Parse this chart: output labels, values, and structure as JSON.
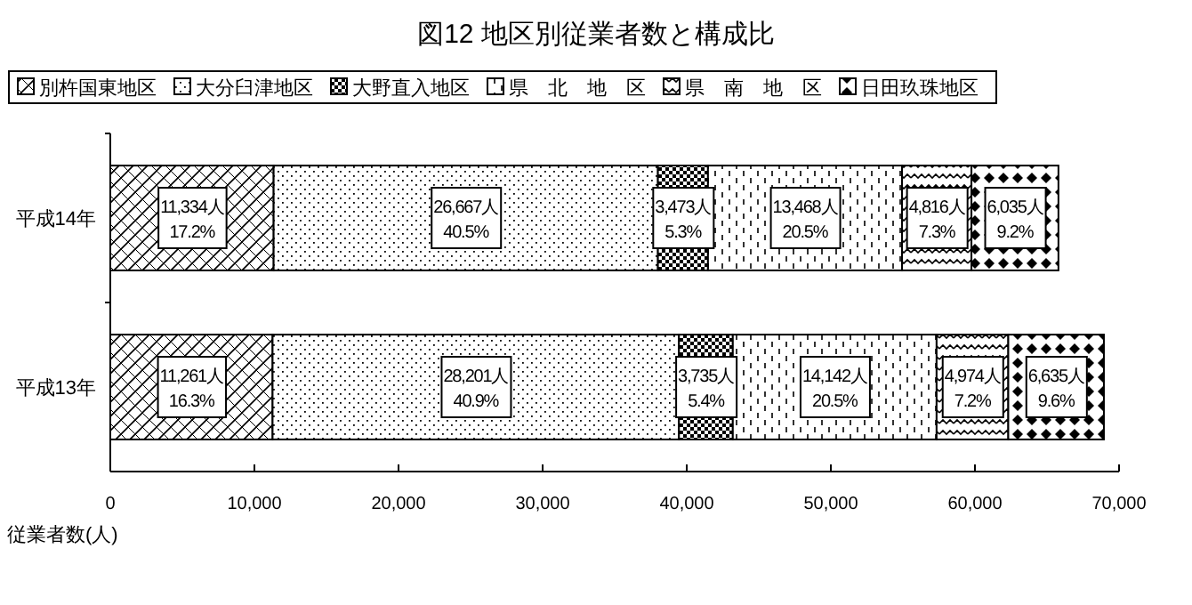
{
  "chart_data": {
    "type": "bar",
    "orientation": "horizontal",
    "stacked": true,
    "title": "図12 地区別従業者数と構成比",
    "xlabel": "従業者数(人)",
    "categories": [
      "平成14年",
      "平成13年"
    ],
    "series": [
      {
        "name": "別杵国東地区",
        "color": "#000000",
        "values": [
          11334,
          11261
        ],
        "value_labels": [
          "11,334人\n17.2%",
          "11,261人\n16.3%"
        ]
      },
      {
        "name": "大分臼津地区",
        "color": "#000000",
        "values": [
          26667,
          28201
        ],
        "value_labels": [
          "26,667人\n40.5%",
          "28,201人\n40.9%"
        ]
      },
      {
        "name": "大野直入地区",
        "color": "#000000",
        "values": [
          3473,
          3735
        ],
        "value_labels": [
          "3,473人\n5.3%",
          "3,735人\n5.4%"
        ]
      },
      {
        "name": "県　北　地　区",
        "color": "#000000",
        "values": [
          13468,
          14142
        ],
        "value_labels": [
          "13,468人\n20.5%",
          "14,142人\n20.5%"
        ]
      },
      {
        "name": "県　南　地　区",
        "color": "#000000",
        "values": [
          4816,
          4974
        ],
        "value_labels": [
          "4,816人\n7.3%",
          "4,974人\n7.2%"
        ]
      },
      {
        "name": "日田玖珠地区",
        "color": "#000000",
        "values": [
          6035,
          6635
        ],
        "value_labels": [
          "6,035人\n9.2%",
          "6,635人\n9.6%"
        ]
      }
    ],
    "xlim": [
      0,
      70000
    ],
    "xticks": [
      0,
      {
        "value": 10000,
        "label": "10,000"
      },
      {
        "value": 20000,
        "label": "20,000"
      },
      {
        "value": 30000,
        "label": "30,000"
      },
      {
        "value": 40000,
        "label": "40,000"
      },
      {
        "value": 50000,
        "label": "50,000"
      },
      {
        "value": 60000,
        "label": "60,000"
      },
      {
        "value": 70000,
        "label": "70,000"
      }
    ],
    "grid": false,
    "legend": "top"
  }
}
